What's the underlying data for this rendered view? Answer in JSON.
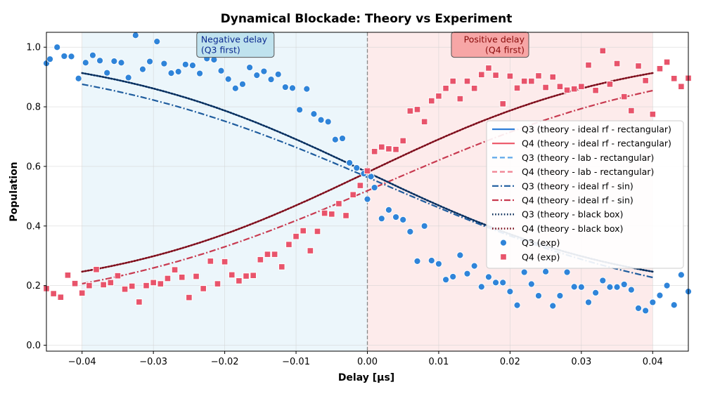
{
  "chart_data": {
    "type": "line",
    "title": "Dynamical Blockade: Theory vs Experiment",
    "xlabel": "Delay [μs]",
    "ylabel": "Population",
    "xlim": [
      -0.045,
      0.045
    ],
    "ylim": [
      -0.02,
      1.05
    ],
    "xticks": [
      -0.04,
      -0.03,
      -0.02,
      -0.01,
      0.0,
      0.01,
      0.02,
      0.03,
      0.04
    ],
    "xtick_labels": [
      "−0.04",
      "−0.03",
      "−0.02",
      "−0.01",
      "0.00",
      "0.01",
      "0.02",
      "0.03",
      "0.04"
    ],
    "yticks": [
      0.0,
      0.2,
      0.4,
      0.6,
      0.8,
      1.0
    ],
    "ytick_labels": [
      "0.0",
      "0.2",
      "0.4",
      "0.6",
      "0.8",
      "1.0"
    ],
    "grid": true,
    "legend_position": "center-right",
    "regions": [
      {
        "name": "negative",
        "x0": -0.04,
        "x1": 0.0,
        "color": "#ddeef7"
      },
      {
        "name": "positive",
        "x0": 0.0,
        "x1": 0.04,
        "color": "#fbdada"
      }
    ],
    "vline_x": 0.0,
    "annotations": [
      {
        "lines": [
          "Negative delay",
          "(Q3 first)"
        ],
        "x": -0.0185,
        "y": 0.985,
        "text_color": "#0b2a8f",
        "box_color": "#bfe2ee"
      },
      {
        "lines": [
          "Positive delay",
          "(Q4 first)"
        ],
        "x": 0.0172,
        "y": 0.985,
        "text_color": "#8a0b0b",
        "box_color": "#f7a6a6"
      }
    ],
    "theory_x_range": [
      -0.04,
      0.04
    ],
    "series": [
      {
        "name": "Q3 (theory - ideal rf - rectangular)",
        "style": "solid",
        "color": "#2f7ed8",
        "model": {
          "hi": 1.0,
          "lo": 0.16,
          "center": 0.0,
          "width": 0.0185
        }
      },
      {
        "name": "Q4 (theory - ideal rf - rectangular)",
        "style": "solid",
        "color": "#ec5466",
        "model": {
          "hi": 1.0,
          "lo": 0.16,
          "center": 0.0,
          "width": 0.0185,
          "rising": true
        }
      },
      {
        "name": "Q3 (theory - lab - rectangular)",
        "style": "dashed",
        "color": "#5ea8ea",
        "model": {
          "hi": 1.0,
          "lo": 0.16,
          "center": 0.0,
          "width": 0.0185
        }
      },
      {
        "name": "Q4 (theory - lab - rectangular)",
        "style": "dashed",
        "color": "#f08090",
        "model": {
          "hi": 1.0,
          "lo": 0.16,
          "center": 0.0,
          "width": 0.0185,
          "rising": true
        }
      },
      {
        "name": "Q3 (theory - ideal rf - sin)",
        "style": "dashdot",
        "color": "#1e5c9e",
        "model": {
          "hi": 0.985,
          "lo": 0.097,
          "center": 0.0022,
          "width": 0.0215
        }
      },
      {
        "name": "Q4 (theory - ideal rf - sin)",
        "style": "dashdot",
        "color": "#c83a50",
        "model": {
          "hi": 0.985,
          "lo": 0.097,
          "center": 0.0022,
          "width": 0.0215,
          "rising": true
        }
      },
      {
        "name": "Q3 (theory - black box)",
        "style": "dotted",
        "color": "#0b2e5a",
        "model": {
          "hi": 1.0,
          "lo": 0.16,
          "center": 0.0,
          "width": 0.0185
        }
      },
      {
        "name": "Q4 (theory - black box)",
        "style": "dotted",
        "color": "#7a0f1c",
        "model": {
          "hi": 1.0,
          "lo": 0.16,
          "center": 0.0,
          "width": 0.0185,
          "rising": true
        }
      },
      {
        "name": "Q3 (exp)",
        "style": "scatter-circle",
        "color": "#2f84d9",
        "points": [
          [
            -0.045,
            0.946
          ],
          [
            -0.0445,
            0.96
          ],
          [
            -0.0435,
            1.0
          ],
          [
            -0.0425,
            0.97
          ],
          [
            -0.0415,
            0.969
          ],
          [
            -0.0405,
            0.895
          ],
          [
            -0.0395,
            0.948
          ],
          [
            -0.0385,
            0.973
          ],
          [
            -0.0375,
            0.955
          ],
          [
            -0.0365,
            0.914
          ],
          [
            -0.0355,
            0.953
          ],
          [
            -0.0345,
            0.948
          ],
          [
            -0.0335,
            0.898
          ],
          [
            -0.0325,
            1.04
          ],
          [
            -0.0315,
            0.926
          ],
          [
            -0.0305,
            0.952
          ],
          [
            -0.0295,
            1.019
          ],
          [
            -0.0285,
            0.945
          ],
          [
            -0.0275,
            0.913
          ],
          [
            -0.0265,
            0.918
          ],
          [
            -0.0255,
            0.942
          ],
          [
            -0.0245,
            0.939
          ],
          [
            -0.0235,
            0.912
          ],
          [
            -0.0225,
            0.962
          ],
          [
            -0.0215,
            0.958
          ],
          [
            -0.0205,
            0.921
          ],
          [
            -0.0195,
            0.893
          ],
          [
            -0.0185,
            0.862
          ],
          [
            -0.0175,
            0.876
          ],
          [
            -0.0165,
            0.932
          ],
          [
            -0.0155,
            0.906
          ],
          [
            -0.0145,
            0.919
          ],
          [
            -0.0135,
            0.892
          ],
          [
            -0.0125,
            0.909
          ],
          [
            -0.0115,
            0.866
          ],
          [
            -0.0105,
            0.863
          ],
          [
            -0.0095,
            0.79
          ],
          [
            -0.0085,
            0.86
          ],
          [
            -0.0075,
            0.776
          ],
          [
            -0.0065,
            0.756
          ],
          [
            -0.0055,
            0.75
          ],
          [
            -0.0045,
            0.69
          ],
          [
            -0.0035,
            0.694
          ],
          [
            -0.0025,
            0.612
          ],
          [
            -0.0015,
            0.595
          ],
          [
            -0.0005,
            0.576
          ],
          [
            0.0,
            0.49
          ],
          [
            0.0005,
            0.566
          ],
          [
            0.001,
            0.529
          ],
          [
            0.002,
            0.425
          ],
          [
            0.003,
            0.454
          ],
          [
            0.004,
            0.43
          ],
          [
            0.005,
            0.421
          ],
          [
            0.006,
            0.381
          ],
          [
            0.007,
            0.282
          ],
          [
            0.008,
            0.4
          ],
          [
            0.009,
            0.284
          ],
          [
            0.01,
            0.273
          ],
          [
            0.011,
            0.22
          ],
          [
            0.012,
            0.23
          ],
          [
            0.013,
            0.302
          ],
          [
            0.014,
            0.24
          ],
          [
            0.015,
            0.266
          ],
          [
            0.016,
            0.196
          ],
          [
            0.017,
            0.229
          ],
          [
            0.018,
            0.21
          ],
          [
            0.019,
            0.21
          ],
          [
            0.02,
            0.18
          ],
          [
            0.021,
            0.134
          ],
          [
            0.022,
            0.245
          ],
          [
            0.023,
            0.205
          ],
          [
            0.024,
            0.166
          ],
          [
            0.025,
            0.247
          ],
          [
            0.026,
            0.132
          ],
          [
            0.027,
            0.166
          ],
          [
            0.028,
            0.245
          ],
          [
            0.029,
            0.196
          ],
          [
            0.03,
            0.195
          ],
          [
            0.031,
            0.144
          ],
          [
            0.032,
            0.176
          ],
          [
            0.033,
            0.217
          ],
          [
            0.034,
            0.195
          ],
          [
            0.035,
            0.195
          ],
          [
            0.036,
            0.204
          ],
          [
            0.037,
            0.186
          ],
          [
            0.038,
            0.124
          ],
          [
            0.039,
            0.116
          ],
          [
            0.04,
            0.144
          ],
          [
            0.041,
            0.167
          ],
          [
            0.042,
            0.2
          ],
          [
            0.043,
            0.135
          ],
          [
            0.044,
            0.236
          ],
          [
            0.045,
            0.18
          ]
        ]
      },
      {
        "name": "Q4 (exp)",
        "style": "scatter-square",
        "color": "#e8546b",
        "points": [
          [
            -0.045,
            0.19
          ],
          [
            -0.044,
            0.173
          ],
          [
            -0.043,
            0.161
          ],
          [
            -0.042,
            0.235
          ],
          [
            -0.041,
            0.207
          ],
          [
            -0.04,
            0.175
          ],
          [
            -0.039,
            0.2
          ],
          [
            -0.038,
            0.254
          ],
          [
            -0.037,
            0.203
          ],
          [
            -0.036,
            0.21
          ],
          [
            -0.035,
            0.233
          ],
          [
            -0.034,
            0.188
          ],
          [
            -0.033,
            0.198
          ],
          [
            -0.032,
            0.145
          ],
          [
            -0.031,
            0.2
          ],
          [
            -0.03,
            0.21
          ],
          [
            -0.029,
            0.206
          ],
          [
            -0.028,
            0.224
          ],
          [
            -0.027,
            0.253
          ],
          [
            -0.026,
            0.228
          ],
          [
            -0.025,
            0.16
          ],
          [
            -0.024,
            0.231
          ],
          [
            -0.023,
            0.19
          ],
          [
            -0.022,
            0.282
          ],
          [
            -0.021,
            0.206
          ],
          [
            -0.02,
            0.28
          ],
          [
            -0.019,
            0.236
          ],
          [
            -0.018,
            0.216
          ],
          [
            -0.017,
            0.232
          ],
          [
            -0.016,
            0.234
          ],
          [
            -0.015,
            0.287
          ],
          [
            -0.014,
            0.305
          ],
          [
            -0.013,
            0.305
          ],
          [
            -0.012,
            0.263
          ],
          [
            -0.011,
            0.338
          ],
          [
            -0.01,
            0.365
          ],
          [
            -0.009,
            0.384
          ],
          [
            -0.008,
            0.317
          ],
          [
            -0.007,
            0.382
          ],
          [
            -0.006,
            0.443
          ],
          [
            -0.005,
            0.44
          ],
          [
            -0.004,
            0.475
          ],
          [
            -0.003,
            0.435
          ],
          [
            -0.002,
            0.505
          ],
          [
            -0.001,
            0.536
          ],
          [
            0.0,
            0.585
          ],
          [
            0.001,
            0.65
          ],
          [
            0.002,
            0.665
          ],
          [
            0.003,
            0.659
          ],
          [
            0.004,
            0.657
          ],
          [
            0.005,
            0.686
          ],
          [
            0.006,
            0.786
          ],
          [
            0.007,
            0.791
          ],
          [
            0.008,
            0.75
          ],
          [
            0.009,
            0.82
          ],
          [
            0.01,
            0.836
          ],
          [
            0.011,
            0.862
          ],
          [
            0.012,
            0.886
          ],
          [
            0.013,
            0.827
          ],
          [
            0.014,
            0.886
          ],
          [
            0.015,
            0.862
          ],
          [
            0.016,
            0.908
          ],
          [
            0.017,
            0.93
          ],
          [
            0.018,
            0.906
          ],
          [
            0.019,
            0.81
          ],
          [
            0.02,
            0.903
          ],
          [
            0.021,
            0.863
          ],
          [
            0.022,
            0.886
          ],
          [
            0.023,
            0.886
          ],
          [
            0.024,
            0.904
          ],
          [
            0.025,
            0.865
          ],
          [
            0.026,
            0.9
          ],
          [
            0.027,
            0.868
          ],
          [
            0.028,
            0.856
          ],
          [
            0.029,
            0.86
          ],
          [
            0.03,
            0.868
          ],
          [
            0.031,
            0.94
          ],
          [
            0.032,
            0.855
          ],
          [
            0.033,
            0.988
          ],
          [
            0.034,
            0.876
          ],
          [
            0.035,
            0.945
          ],
          [
            0.036,
            0.834
          ],
          [
            0.037,
            0.787
          ],
          [
            0.038,
            0.937
          ],
          [
            0.039,
            0.888
          ],
          [
            0.04,
            0.775
          ],
          [
            0.041,
            0.928
          ],
          [
            0.042,
            0.95
          ],
          [
            0.043,
            0.895
          ],
          [
            0.044,
            0.868
          ],
          [
            0.045,
            0.896
          ]
        ]
      }
    ]
  }
}
